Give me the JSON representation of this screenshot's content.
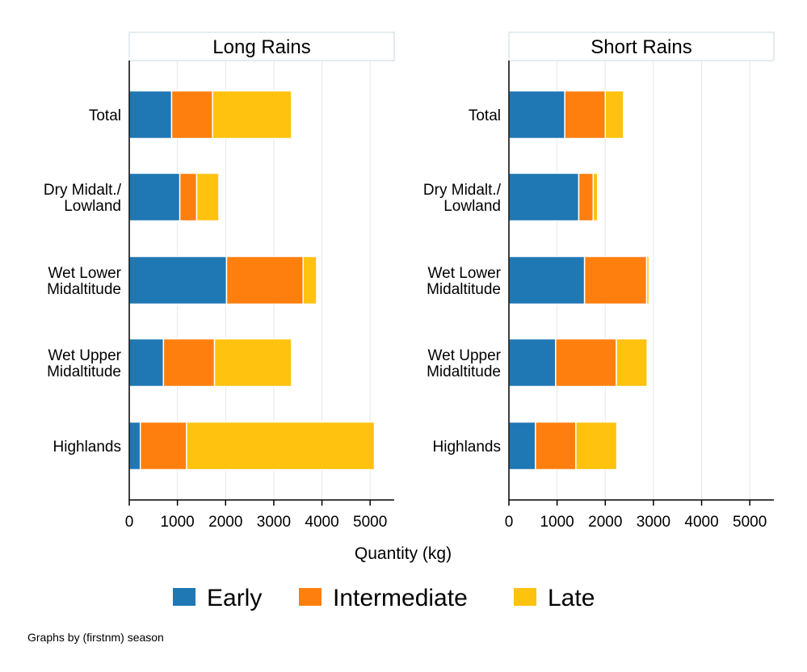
{
  "chart_data": {
    "type": "bar",
    "orientation": "horizontal",
    "stacked": true,
    "xlabel": "Quantity (kg)",
    "xlim": [
      0,
      5500
    ],
    "xticks": [
      0,
      1000,
      2000,
      3000,
      4000,
      5000
    ],
    "grid": "vertical",
    "legend_position": "bottom",
    "note": "Graphs by (firstnm) season",
    "series": [
      {
        "name": "Early",
        "color": "#1f77b4"
      },
      {
        "name": "Intermediate",
        "color": "#ff7f0e"
      },
      {
        "name": "Late",
        "color": "#ffc20e"
      }
    ],
    "categories": [
      "Total",
      "Dry Midalt./\nLowland",
      "Wet Lower\nMidaltitude",
      "Wet Upper\nMidaltitude",
      "Highlands"
    ],
    "panels": [
      {
        "title": "Long Rains",
        "values": {
          "Early": [
            880,
            1050,
            2020,
            710,
            230
          ],
          "Intermediate": [
            850,
            350,
            1590,
            1060,
            960
          ],
          "Late": [
            1640,
            460,
            280,
            1600,
            3900
          ]
        }
      },
      {
        "title": "Short Rains",
        "values": {
          "Early": [
            1160,
            1450,
            1570,
            970,
            550
          ],
          "Intermediate": [
            840,
            300,
            1290,
            1260,
            840
          ],
          "Late": [
            380,
            90,
            50,
            640,
            850
          ]
        }
      }
    ]
  }
}
